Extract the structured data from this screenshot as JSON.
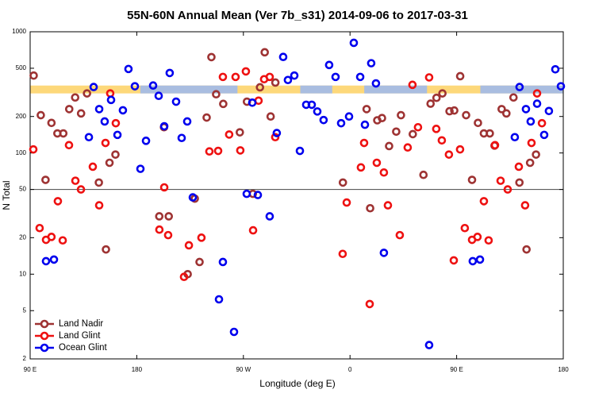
{
  "chart_data": {
    "type": "scatter",
    "title": "55N-60N Annual Mean (Ver 7b_s31)   2014-09-06 to 2017-03-31",
    "xlabel": "Longitude (deg E)",
    "ylabel": "N Total",
    "yscale": "log",
    "xlim": [
      90,
      540
    ],
    "ylim": [
      2,
      1000
    ],
    "xticks": [
      {
        "value": 90,
        "label": "90 E"
      },
      {
        "value": 180,
        "label": "180"
      },
      {
        "value": 270,
        "label": "90 W"
      },
      {
        "value": 360,
        "label": "0"
      },
      {
        "value": 450,
        "label": "90 E"
      },
      {
        "value": 540,
        "label": "180"
      }
    ],
    "yticks": [
      2,
      5,
      10,
      20,
      50,
      100,
      200,
      500,
      1000
    ],
    "reference_line": 50,
    "band": {
      "ylim": [
        310,
        360
      ],
      "colors": [
        "#fdd87a",
        "#a9bde0"
      ],
      "segments": [
        [
          183,
          265
        ],
        [
          318,
          345
        ],
        [
          372,
          425
        ],
        [
          470,
          540
        ]
      ]
    },
    "legend": "lower left",
    "series": [
      {
        "name": "Land Nadir",
        "color": "#9e3333",
        "x": [
          93,
          99,
          103,
          108,
          113,
          118,
          123,
          128,
          133,
          138,
          148,
          154,
          157,
          162,
          199,
          203,
          207,
          223,
          229,
          233,
          239,
          243,
          247,
          253,
          267,
          273,
          278,
          284,
          288,
          293,
          297,
          354,
          374,
          377,
          383,
          387,
          393,
          399,
          403,
          413,
          422,
          428,
          433,
          438,
          444,
          448,
          453,
          458,
          463,
          468,
          473,
          478,
          482,
          488,
          492,
          498,
          503,
          509,
          512,
          517
        ],
        "values": [
          435,
          205,
          60,
          177,
          145,
          145,
          230,
          287,
          212,
          310,
          57,
          16,
          83,
          97,
          30,
          163,
          30,
          10,
          42,
          12.6,
          196,
          618,
          305,
          254,
          148,
          265,
          46,
          348,
          677,
          200,
          381,
          57,
          230,
          35,
          186,
          194,
          114,
          150,
          205,
          143,
          66,
          255,
          285,
          310,
          221,
          224,
          430,
          205,
          60,
          177,
          145,
          145,
          115,
          230,
          212,
          287,
          57,
          16,
          83,
          97
        ]
      },
      {
        "name": "Land Glint",
        "color": "#ee1111",
        "x": [
          92.7,
          98,
          103.4,
          108,
          113.4,
          117.5,
          122.8,
          128.2,
          132.9,
          142.9,
          148.3,
          153.6,
          157.6,
          162.3,
          199.1,
          203.2,
          206.5,
          219.9,
          224,
          234.6,
          241.3,
          248.7,
          252.7,
          258,
          263.4,
          267.4,
          272.1,
          278.2,
          282.8,
          287.5,
          292.2,
          296.9,
          353.8,
          357.2,
          369.2,
          371.9,
          376.6,
          382.6,
          388.6,
          392,
          402,
          408.7,
          412.7,
          417.4,
          426.8,
          432.8,
          437.5,
          443.5,
          447.6,
          452.9,
          456.9,
          463,
          467.6,
          473,
          477,
          482.4,
          487.1,
          493.1,
          502.5,
          507.8,
          513.2,
          517.9,
          522
        ],
        "values": [
          107,
          24,
          19.2,
          20.3,
          40,
          19,
          116,
          59,
          50,
          77,
          37,
          121,
          310,
          176,
          23.3,
          52,
          21,
          9.5,
          17.3,
          20,
          103,
          104,
          424,
          142,
          424,
          105,
          471,
          23,
          270,
          406,
          424,
          135,
          14.7,
          39,
          76,
          121,
          5.67,
          83,
          69,
          37,
          21,
          111,
          365,
          163,
          420,
          158,
          127,
          97,
          13,
          107,
          24,
          19.2,
          20.3,
          40,
          19,
          116,
          59,
          50,
          77,
          37,
          121,
          310,
          176
        ]
      },
      {
        "name": "Ocean Glint",
        "color": "#0000ee",
        "x": [
          103.4,
          110.1,
          139.6,
          143.6,
          148.3,
          152.9,
          158.3,
          163.7,
          168.3,
          173,
          178.4,
          183.1,
          187.8,
          193.8,
          198.5,
          203.2,
          207.8,
          213.2,
          217.9,
          222.6,
          227.3,
          249.4,
          252.7,
          262.1,
          272.8,
          277.5,
          282.2,
          292.2,
          298.2,
          303.6,
          307.6,
          313,
          317.7,
          323,
          327.7,
          332.4,
          337.7,
          342.4,
          347.8,
          352.5,
          359.2,
          363.2,
          368.6,
          372.6,
          377.9,
          381.9,
          388.6,
          426.8,
          463.6,
          469.7,
          499.1,
          503.1,
          508.5,
          512.5,
          517.9,
          523.9,
          527.9,
          533.3,
          538
        ],
        "values": [
          12.8,
          13.2,
          135,
          350,
          230,
          182,
          274,
          141,
          225,
          493,
          355,
          74,
          126,
          360,
          296,
          166,
          457,
          265,
          133,
          182,
          43,
          6.2,
          12.6,
          3.34,
          46,
          260,
          45,
          30,
          146,
          620,
          400,
          435,
          104,
          250,
          250,
          220,
          187,
          532,
          424,
          176,
          200,
          810,
          424,
          171,
          550,
          375,
          15,
          2.6,
          12.8,
          13.2,
          135,
          350,
          230,
          182,
          255,
          141,
          222,
          490,
          355
        ]
      }
    ]
  }
}
